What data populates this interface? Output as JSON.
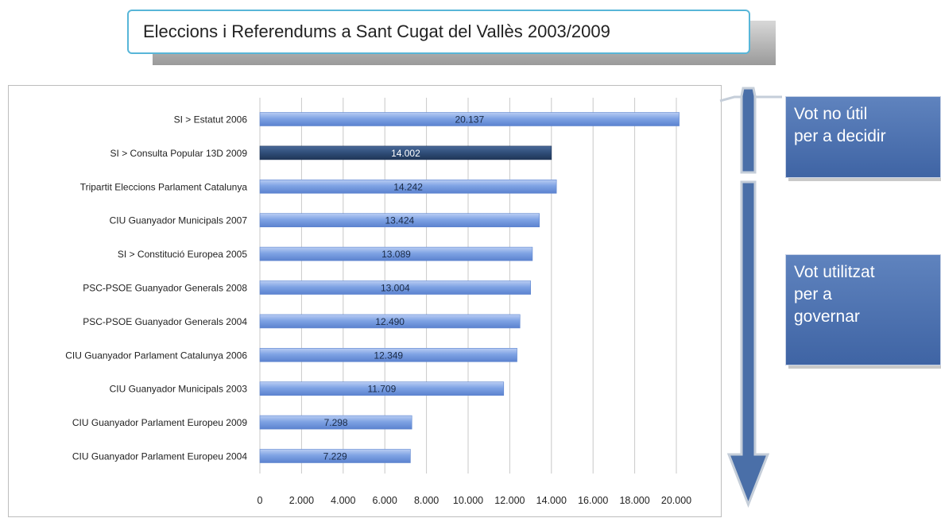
{
  "title": "Eleccions i Referendums a Sant Cugat del Vallès 2003/2009",
  "side_boxes": {
    "top_text": "Vot  no útil\nper a decidir",
    "bottom_text": "Vot utilitzat\nper a\ngovernar"
  },
  "colors": {
    "bar": "#7fa3e4",
    "bar_highlight": "#2f4d78",
    "arrow": "#4a6fa8",
    "box": "#4d71ae",
    "title_border": "#58b6d8"
  },
  "chart_data": {
    "type": "bar",
    "orientation": "horizontal",
    "title": "",
    "xlabel": "",
    "ylabel": "",
    "xlim": [
      0,
      20000
    ],
    "x_ticks": [
      0,
      2000,
      4000,
      6000,
      8000,
      10000,
      12000,
      14000,
      16000,
      18000,
      20000
    ],
    "x_tick_labels": [
      "0",
      "2.000",
      "4.000",
      "6.000",
      "8.000",
      "10.000",
      "12.000",
      "14.000",
      "16.000",
      "18.000",
      "20.000"
    ],
    "grid": "vertical",
    "categories": [
      "SI > Estatut 2006",
      "SI > Consulta Popular 13D 2009",
      "Tripartit Eleccions Parlament Catalunya",
      "CIU Guanyador Municipals 2007",
      "SI > Constitució Europea 2005",
      "PSC-PSOE Guanyador Generals 2008",
      "PSC-PSOE Guanyador Generals 2004",
      "CIU Guanyador Parlament Catalunya 2006",
      "CIU Guanyador Municipals 2003",
      "CIU Guanyador Parlament Europeu 2009",
      "CIU Guanyador Parlament Europeu 2004"
    ],
    "values": [
      20137,
      14002,
      14242,
      13424,
      13089,
      13004,
      12490,
      12349,
      11709,
      7298,
      7229
    ],
    "value_labels": [
      "20.137",
      "14.002",
      "14.242",
      "13.424",
      "13.089",
      "13.004",
      "12.490",
      "12.349",
      "11.709",
      "7.298",
      "7.229"
    ],
    "highlight_index": 1
  }
}
